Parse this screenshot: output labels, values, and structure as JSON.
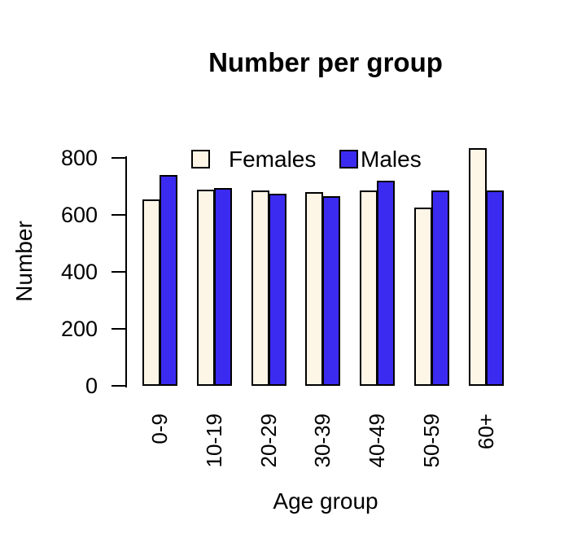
{
  "title": "Number per group",
  "legend": {
    "items": [
      {
        "label": "Females",
        "color": "#FDF5E6"
      },
      {
        "label": "Males",
        "color": "#3B2BF0"
      }
    ]
  },
  "chart_data": {
    "type": "bar",
    "title": "Number per group",
    "xlabel": "Age group",
    "ylabel": "Number",
    "categories": [
      "0-9",
      "10-19",
      "20-29",
      "30-39",
      "40-49",
      "50-59",
      "60+"
    ],
    "series": [
      {
        "name": "Females",
        "color": "#FDF5E6",
        "values": [
          655,
          690,
          685,
          680,
          685,
          625,
          835
        ]
      },
      {
        "name": "Males",
        "color": "#3B2BF0",
        "values": [
          740,
          695,
          675,
          665,
          720,
          685,
          685
        ]
      }
    ],
    "ylim": [
      0,
      800
    ],
    "y_ticks": [
      0,
      200,
      400,
      600,
      800
    ],
    "bar_border_color": "#000000",
    "grid": false,
    "legend_position": "top-center",
    "x_tick_label_rotation": -90
  }
}
